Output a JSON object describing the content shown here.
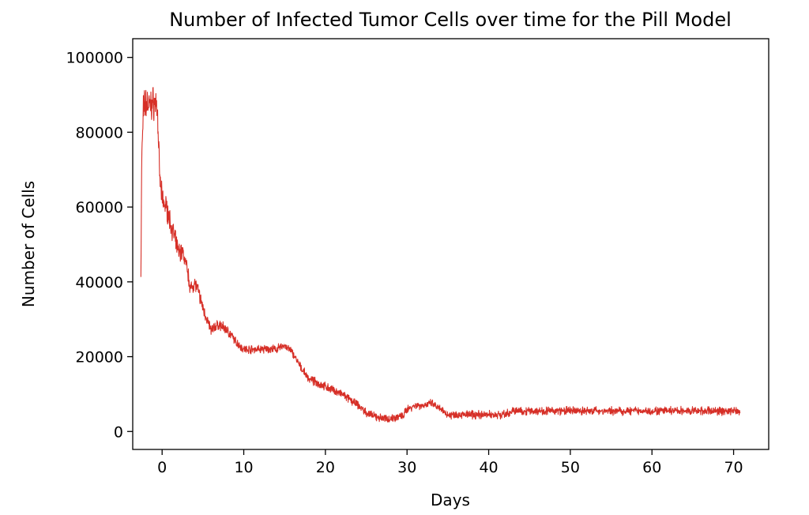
{
  "chart_data": {
    "type": "line",
    "title": "Number of Infected Tumor Cells over time for the Pill Model",
    "xlabel": "Days",
    "ylabel": "Number of Cells",
    "xlim": [
      -3.6,
      74.3
    ],
    "ylim": [
      -4800,
      105000
    ],
    "xticks": [
      0,
      10,
      20,
      30,
      40,
      50,
      60,
      70
    ],
    "yticks": [
      0,
      20000,
      40000,
      60000,
      80000,
      100000
    ],
    "xtick_labels": [
      "0",
      "10",
      "20",
      "30",
      "40",
      "50",
      "60",
      "70"
    ],
    "ytick_labels": [
      "0",
      "20000",
      "40000",
      "60000",
      "80000",
      "100000"
    ],
    "grid": false,
    "legend": "none",
    "colors": {
      "series": "#d62f27"
    },
    "series": [
      {
        "x": [
          -2.6,
          -2.5,
          -2.3,
          -2.0,
          -1.5,
          -1.0,
          -0.6,
          -0.3,
          0.0,
          0.5,
          1.0,
          1.5,
          2.0,
          2.5,
          3.0,
          3.5,
          4.0,
          4.5,
          5.0,
          5.5,
          6.0,
          6.5,
          7.0,
          8.0,
          9.0,
          10.0,
          11.0,
          12.0,
          13.0,
          14.0,
          15.0,
          16.0,
          17.0,
          18.0,
          19.0,
          20.0,
          21.0,
          22.0,
          23.0,
          24.0,
          25.0,
          26.0,
          27.0,
          28.0,
          29.0,
          29.5,
          30.0,
          31.0,
          32.0,
          33.0,
          34.0,
          35.0,
          36.0,
          38.0,
          40.0,
          42.0,
          43.0,
          44.0,
          46.0,
          50.0,
          55.0,
          60.0,
          65.0,
          70.0,
          70.8
        ],
        "values": [
          41500,
          72000,
          86000,
          88000,
          87000,
          88000,
          87000,
          68000,
          62000,
          60000,
          56000,
          52000,
          48000,
          48000,
          44000,
          38000,
          40000,
          37000,
          33000,
          30000,
          27000,
          28000,
          28500,
          27000,
          24000,
          22000,
          22000,
          22000,
          22000,
          22000,
          23000,
          21000,
          17000,
          14000,
          13000,
          12000,
          11000,
          10000,
          8500,
          7000,
          5000,
          4000,
          3500,
          3500,
          4000,
          4000,
          6000,
          7000,
          7000,
          7500,
          6000,
          4500,
          4500,
          4500,
          4500,
          4500,
          5500,
          5500,
          5500,
          5500,
          5500,
          5500,
          5500,
          5500,
          5500
        ]
      }
    ]
  }
}
